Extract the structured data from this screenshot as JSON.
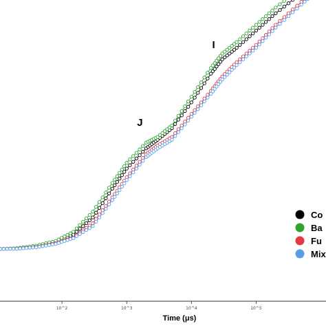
{
  "chart_data": {
    "type": "line",
    "title": "",
    "xlabel": "Time (μs)",
    "ylabel": "",
    "x_scale": "log",
    "xlim": [
      10,
      1200000
    ],
    "ylim": [
      0,
      1
    ],
    "x_ticks": [
      {
        "value": 100,
        "label": "10^2"
      },
      {
        "value": 1000,
        "label": "10^3"
      },
      {
        "value": 10000,
        "label": "10^4"
      },
      {
        "value": 100000,
        "label": "10^5"
      }
    ],
    "annotations": [
      {
        "text": "J",
        "x": 1600,
        "y": 0.45
      },
      {
        "text": "I",
        "x": 22000,
        "y": 0.72
      }
    ],
    "legend_position": "right",
    "grid": false,
    "x": [
      10,
      20,
      40,
      80,
      150,
      300,
      600,
      1000,
      2000,
      3000,
      5000,
      10000,
      20000,
      30000,
      50000,
      100000,
      200000,
      500000,
      1000000
    ],
    "series": [
      {
        "name": "Co",
        "color": "#000000",
        "marker": "circle",
        "values": [
          0.05,
          0.052,
          0.06,
          0.075,
          0.1,
          0.16,
          0.26,
          0.33,
          0.4,
          0.43,
          0.47,
          0.56,
          0.66,
          0.71,
          0.75,
          0.81,
          0.87,
          0.94,
          0.99
        ]
      },
      {
        "name": "Ba",
        "color": "#2ea52e",
        "marker": "circle",
        "values": [
          0.05,
          0.053,
          0.062,
          0.078,
          0.11,
          0.18,
          0.28,
          0.35,
          0.42,
          0.44,
          0.48,
          0.58,
          0.68,
          0.73,
          0.77,
          0.83,
          0.89,
          0.96,
          1.0
        ]
      },
      {
        "name": "Fu",
        "color": "#e53946",
        "marker": "circle",
        "values": [
          0.05,
          0.051,
          0.057,
          0.07,
          0.09,
          0.14,
          0.23,
          0.3,
          0.38,
          0.41,
          0.44,
          0.52,
          0.6,
          0.65,
          0.7,
          0.76,
          0.83,
          0.91,
          0.97
        ]
      },
      {
        "name": "Mix",
        "color": "#5a9de6",
        "marker": "circle",
        "values": [
          0.05,
          0.051,
          0.056,
          0.068,
          0.088,
          0.13,
          0.22,
          0.29,
          0.37,
          0.4,
          0.43,
          0.51,
          0.59,
          0.64,
          0.69,
          0.75,
          0.82,
          0.9,
          0.96
        ]
      }
    ]
  }
}
